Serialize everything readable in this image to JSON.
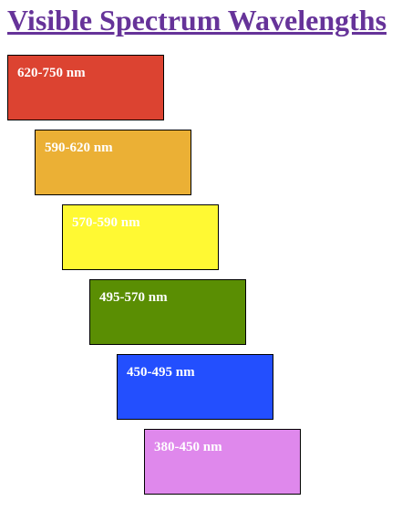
{
  "page": {
    "title": "Visible Spectrum Wavelengths",
    "title_color": "#663399"
  },
  "bands": [
    {
      "label": "620-750 nm",
      "color": "#dc4331"
    },
    {
      "label": "590-620 nm",
      "color": "#ebb035"
    },
    {
      "label": "570-590 nm",
      "color": "#fff933"
    },
    {
      "label": "495-570 nm",
      "color": "#5a8e03"
    },
    {
      "label": "450-495 nm",
      "color": "#234ffe"
    },
    {
      "label": "380-450 nm",
      "color": "#df88ec"
    }
  ]
}
